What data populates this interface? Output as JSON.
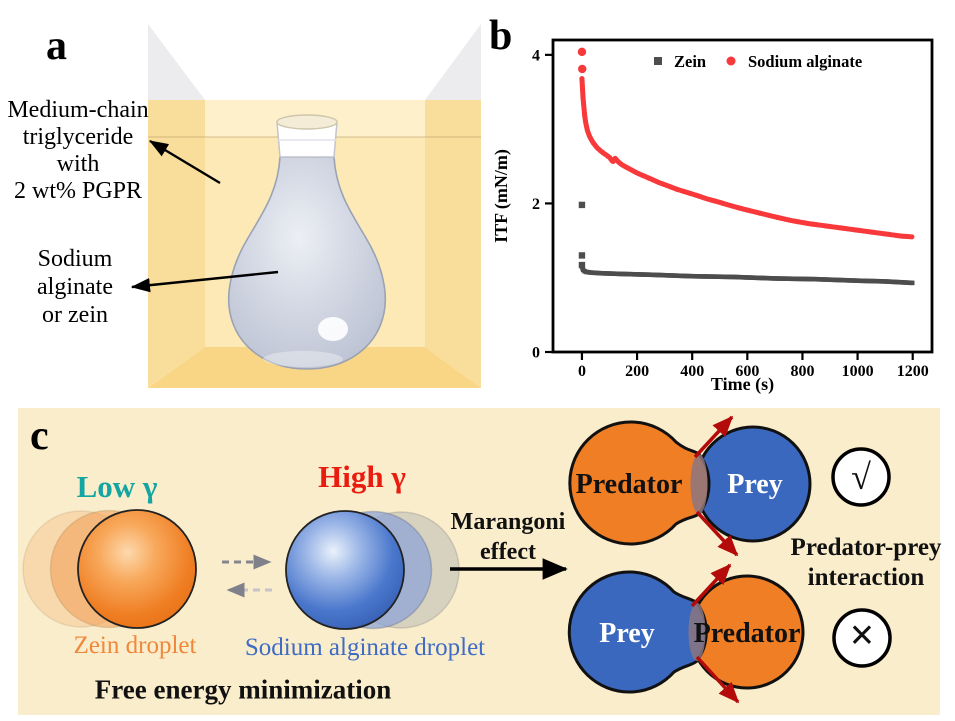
{
  "panel_a": {
    "label": "a",
    "oil_label_lines": [
      "Medium-chain",
      "triglyceride",
      "with",
      "2 wt% PGPR"
    ],
    "drop_label_lines": [
      "Sodium",
      "alginate",
      "or zein"
    ]
  },
  "panel_b": {
    "label": "b"
  },
  "chart_data": {
    "type": "scatter",
    "title": "",
    "xlabel": "Time (s)",
    "ylabel": "ITF (mN/m)",
    "xlim": [
      -105,
      1270
    ],
    "ylim": [
      0,
      4.2
    ],
    "xticks": [
      0,
      200,
      400,
      600,
      800,
      1000,
      1200
    ],
    "yticks": [
      0,
      2,
      4
    ],
    "grid": false,
    "legend_position": "top-center-inside",
    "series": [
      {
        "name": "Zein",
        "marker": "square",
        "color": "#4D4D4D",
        "outliers": [
          [
            0,
            1.98
          ],
          [
            0,
            1.3
          ],
          [
            0,
            1.17
          ]
        ],
        "curve": [
          [
            2,
            1.13
          ],
          [
            5,
            1.1
          ],
          [
            12,
            1.08
          ],
          [
            30,
            1.07
          ],
          [
            70,
            1.06
          ],
          [
            150,
            1.05
          ],
          [
            250,
            1.04
          ],
          [
            400,
            1.02
          ],
          [
            550,
            1.01
          ],
          [
            700,
            0.99
          ],
          [
            850,
            0.98
          ],
          [
            1000,
            0.96
          ],
          [
            1100,
            0.95
          ],
          [
            1200,
            0.93
          ]
        ]
      },
      {
        "name": "Sodium alginate",
        "marker": "circle",
        "color": "#F8393B",
        "outliers": [
          [
            0,
            4.04
          ],
          [
            1,
            3.81
          ]
        ],
        "curve": [
          [
            0,
            3.68
          ],
          [
            2,
            3.55
          ],
          [
            4,
            3.42
          ],
          [
            7,
            3.3
          ],
          [
            10,
            3.18
          ],
          [
            14,
            3.08
          ],
          [
            20,
            2.98
          ],
          [
            28,
            2.9
          ],
          [
            40,
            2.82
          ],
          [
            55,
            2.75
          ],
          [
            70,
            2.7
          ],
          [
            85,
            2.66
          ],
          [
            100,
            2.62
          ],
          [
            112,
            2.56
          ],
          [
            120,
            2.61
          ],
          [
            132,
            2.56
          ],
          [
            145,
            2.52
          ],
          [
            160,
            2.49
          ],
          [
            180,
            2.45
          ],
          [
            200,
            2.41
          ],
          [
            225,
            2.37
          ],
          [
            250,
            2.33
          ],
          [
            280,
            2.28
          ],
          [
            310,
            2.24
          ],
          [
            345,
            2.19
          ],
          [
            380,
            2.15
          ],
          [
            415,
            2.11
          ],
          [
            455,
            2.06
          ],
          [
            495,
            2.02
          ],
          [
            540,
            1.97
          ],
          [
            590,
            1.92
          ],
          [
            645,
            1.87
          ],
          [
            700,
            1.82
          ],
          [
            760,
            1.77
          ],
          [
            820,
            1.73
          ],
          [
            880,
            1.7
          ],
          [
            940,
            1.67
          ],
          [
            1000,
            1.64
          ],
          [
            1060,
            1.61
          ],
          [
            1120,
            1.58
          ],
          [
            1160,
            1.56
          ],
          [
            1200,
            1.55
          ]
        ]
      }
    ]
  },
  "panel_c": {
    "label": "c",
    "low_gamma": "Low γ",
    "high_gamma": "High γ",
    "zein_droplet_label": "Zein droplet",
    "alginate_droplet_label": "Sodium alginate droplet",
    "free_energy_label": "Free energy minimization",
    "marangoni_lines": [
      "Marangoni",
      "effect"
    ],
    "top_pair": {
      "left": "Predator",
      "right": "Prey"
    },
    "bottom_pair": {
      "left": "Prey",
      "right": "Predator"
    },
    "interaction_lines": [
      "Predator-prey",
      "interaction"
    ],
    "check_glyph": "√",
    "cross_glyph": "×",
    "colors": {
      "panel_bg": "#FAEDCB",
      "low_gamma_text": "#14A5A2",
      "high_gamma_text": "#EA1B0F",
      "orange_droplet": "#F07E25",
      "blue_droplet": "#3A68BE",
      "zein_label_text": "#F0873B",
      "alginate_label_text": "#3E6BC5",
      "red_arrow": "#B50A0A",
      "oil_back_wall": "#FCE9B6",
      "oil_side_wall": "#F9DE9B",
      "oil_floor": "#F8D685"
    }
  }
}
